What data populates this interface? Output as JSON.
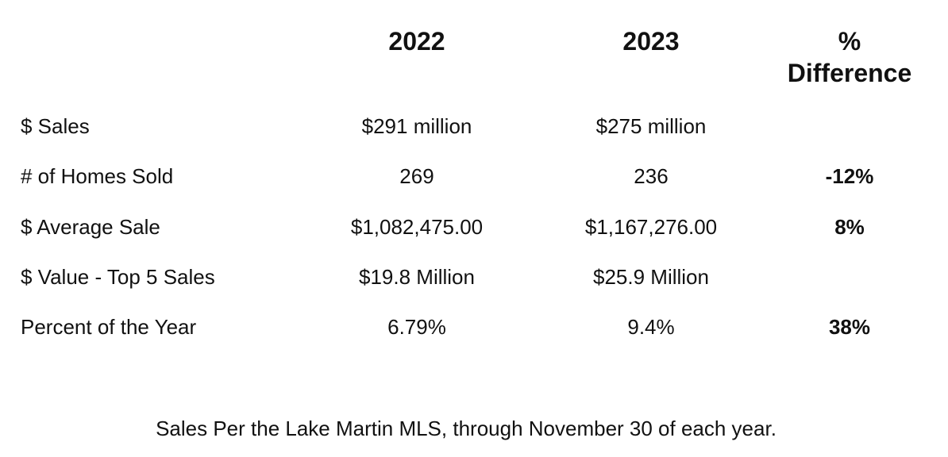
{
  "header": {
    "col_2022": "2022",
    "col_2023": "2023",
    "col_diff_line1": "%",
    "col_diff_line2": "Difference"
  },
  "rows": [
    {
      "label": "$ Sales",
      "v2022": "$291 million",
      "v2023": "$275 million",
      "diff": ""
    },
    {
      "label": "# of Homes Sold",
      "v2022": "269",
      "v2023": "236",
      "diff": "-12%"
    },
    {
      "label": "$ Average Sale",
      "v2022": "$1,082,475.00",
      "v2023": "$1,167,276.00",
      "diff": "8%"
    },
    {
      "label": "$ Value - Top 5 Sales",
      "v2022": "$19.8 Million",
      "v2023": "$25.9 Million",
      "diff": ""
    },
    {
      "label": "Percent of the Year",
      "v2022": "6.79%",
      "v2023": "9.4%",
      "diff": "38%"
    }
  ],
  "footnote": "Sales Per the Lake Martin MLS, through November 30 of each year."
}
